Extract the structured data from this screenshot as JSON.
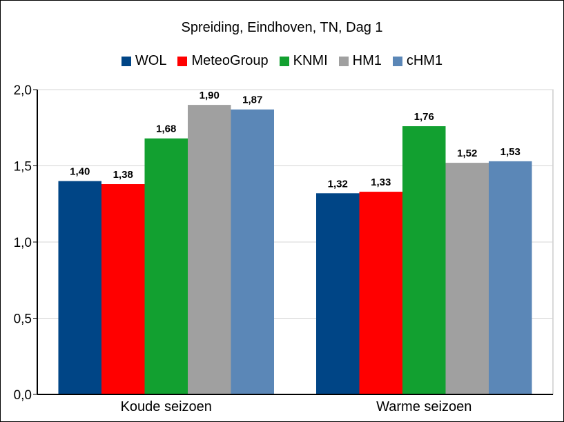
{
  "chart_data": {
    "type": "bar",
    "title": "Spreiding, Eindhoven, TN, Dag 1",
    "categories": [
      "Koude seizoen",
      "Warme seizoen"
    ],
    "series": [
      {
        "name": "WOL",
        "color": "#004586",
        "values": [
          1.4,
          1.32
        ],
        "labels": [
          "1,40",
          "1,32"
        ]
      },
      {
        "name": "MeteoGroup",
        "color": "#ff0000",
        "values": [
          1.38,
          1.33
        ],
        "labels": [
          "1,38",
          "1,33"
        ]
      },
      {
        "name": "KNMI",
        "color": "#12a030",
        "values": [
          1.68,
          1.76
        ],
        "labels": [
          "1,68",
          "1,76"
        ]
      },
      {
        "name": "HM1",
        "color": "#a0a0a0",
        "values": [
          1.9,
          1.52
        ],
        "labels": [
          "1,90",
          "1,52"
        ]
      },
      {
        "name": "cHM1",
        "color": "#5b87b7",
        "values": [
          1.87,
          1.53
        ],
        "labels": [
          "1,87",
          "1,53"
        ]
      }
    ],
    "ylim": [
      0,
      2.0
    ],
    "yticks": [
      0,
      0.5,
      1.0,
      1.5,
      2.0
    ],
    "ytick_labels": [
      "0,0",
      "0,5",
      "1,0",
      "1,5",
      "2,0"
    ],
    "grid": true,
    "legend_position": "top"
  }
}
